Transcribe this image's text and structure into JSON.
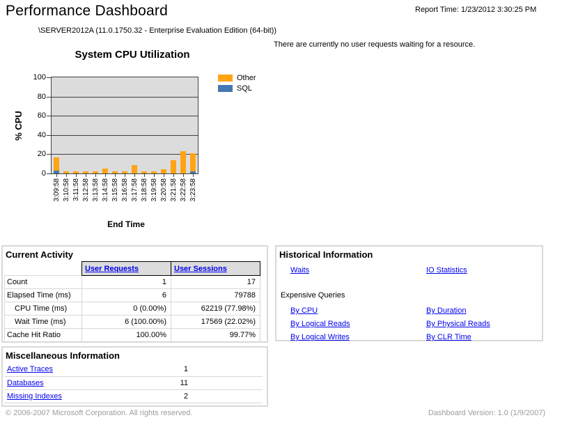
{
  "header": {
    "title": "Performance Dashboard",
    "report_time": "Report Time: 1/23/2012 3:30:25 PM",
    "server_info": "\\SERVER2012A (11.0.1750.32 - Enterprise Evaluation Edition (64-bit))",
    "message": "There are currently no user requests waiting for a resource."
  },
  "chart_data": {
    "type": "bar",
    "stacked": true,
    "title": "System CPU Utilization",
    "xlabel": "End Time",
    "ylabel": "% CPU",
    "ylim": [
      0,
      100
    ],
    "ytick_step": 20,
    "grid": "horizontal",
    "plot_bg": "#DCDCDC",
    "legend_position": "top-right",
    "categories": [
      "3:09:58",
      "3:10:58",
      "3:11:58",
      "3:12:58",
      "3:13:58",
      "3:14:58",
      "3:15:58",
      "3:16:58",
      "3:17:58",
      "3:18:58",
      "3:19:58",
      "3:20:58",
      "3:21:58",
      "3:22:58",
      "3:23:58"
    ],
    "series": [
      {
        "name": "SQL",
        "color": "#4478B2",
        "values": [
          3,
          0,
          0,
          0,
          0,
          0,
          0,
          0,
          0,
          0,
          0,
          0,
          0,
          0,
          2
        ]
      },
      {
        "name": "Other",
        "color": "#FFA414",
        "values": [
          14,
          2,
          2,
          2,
          2,
          5,
          2,
          2,
          9,
          2,
          2,
          4,
          14,
          23,
          19
        ]
      }
    ],
    "legend_order": [
      "Other",
      "SQL"
    ]
  },
  "current_activity": {
    "title": "Current Activity",
    "columns": [
      "User Requests",
      "User Sessions"
    ],
    "rows": [
      {
        "label": "Count",
        "requests": "1",
        "sessions": "17"
      },
      {
        "label": "Elapsed Time (ms)",
        "requests": "6",
        "sessions": "79788"
      },
      {
        "label": "CPU Time (ms)",
        "requests": "0 (0.00%)",
        "sessions": "62219 (77.98%)"
      },
      {
        "label": "Wait Time (ms)",
        "requests": "6 (100.00%)",
        "sessions": "17569 (22.02%)"
      },
      {
        "label": "Cache Hit Ratio",
        "requests": "100.00%",
        "sessions": "99.77%"
      }
    ]
  },
  "historical": {
    "title": "Historical Information",
    "links_top": [
      "Waits",
      "IO Statistics"
    ],
    "subheading": "Expensive Queries",
    "links": [
      [
        "By CPU",
        "By Duration"
      ],
      [
        "By Logical Reads",
        "By Physical Reads"
      ],
      [
        "By Logical Writes",
        "By CLR Time"
      ]
    ]
  },
  "miscellaneous": {
    "title": "Miscellaneous Information",
    "rows": [
      {
        "label": "Active Traces",
        "value": "1"
      },
      {
        "label": "Databases",
        "value": "11"
      },
      {
        "label": "Missing Indexes",
        "value": "2"
      }
    ]
  },
  "footer": {
    "copyright": "© 2006-2007 Microsoft Corporation. All rights reserved.",
    "version": "Dashboard Version: 1.0 (1/9/2007)"
  },
  "colors": {
    "link": "#0000EE",
    "series_other": "#FFA414",
    "series_sql": "#4478B2",
    "plot_background": "#DCDCDC",
    "table_header_background": "#DCDCDC",
    "box_border": "#D9D9D9",
    "footer_text": "#9C9C9C"
  }
}
